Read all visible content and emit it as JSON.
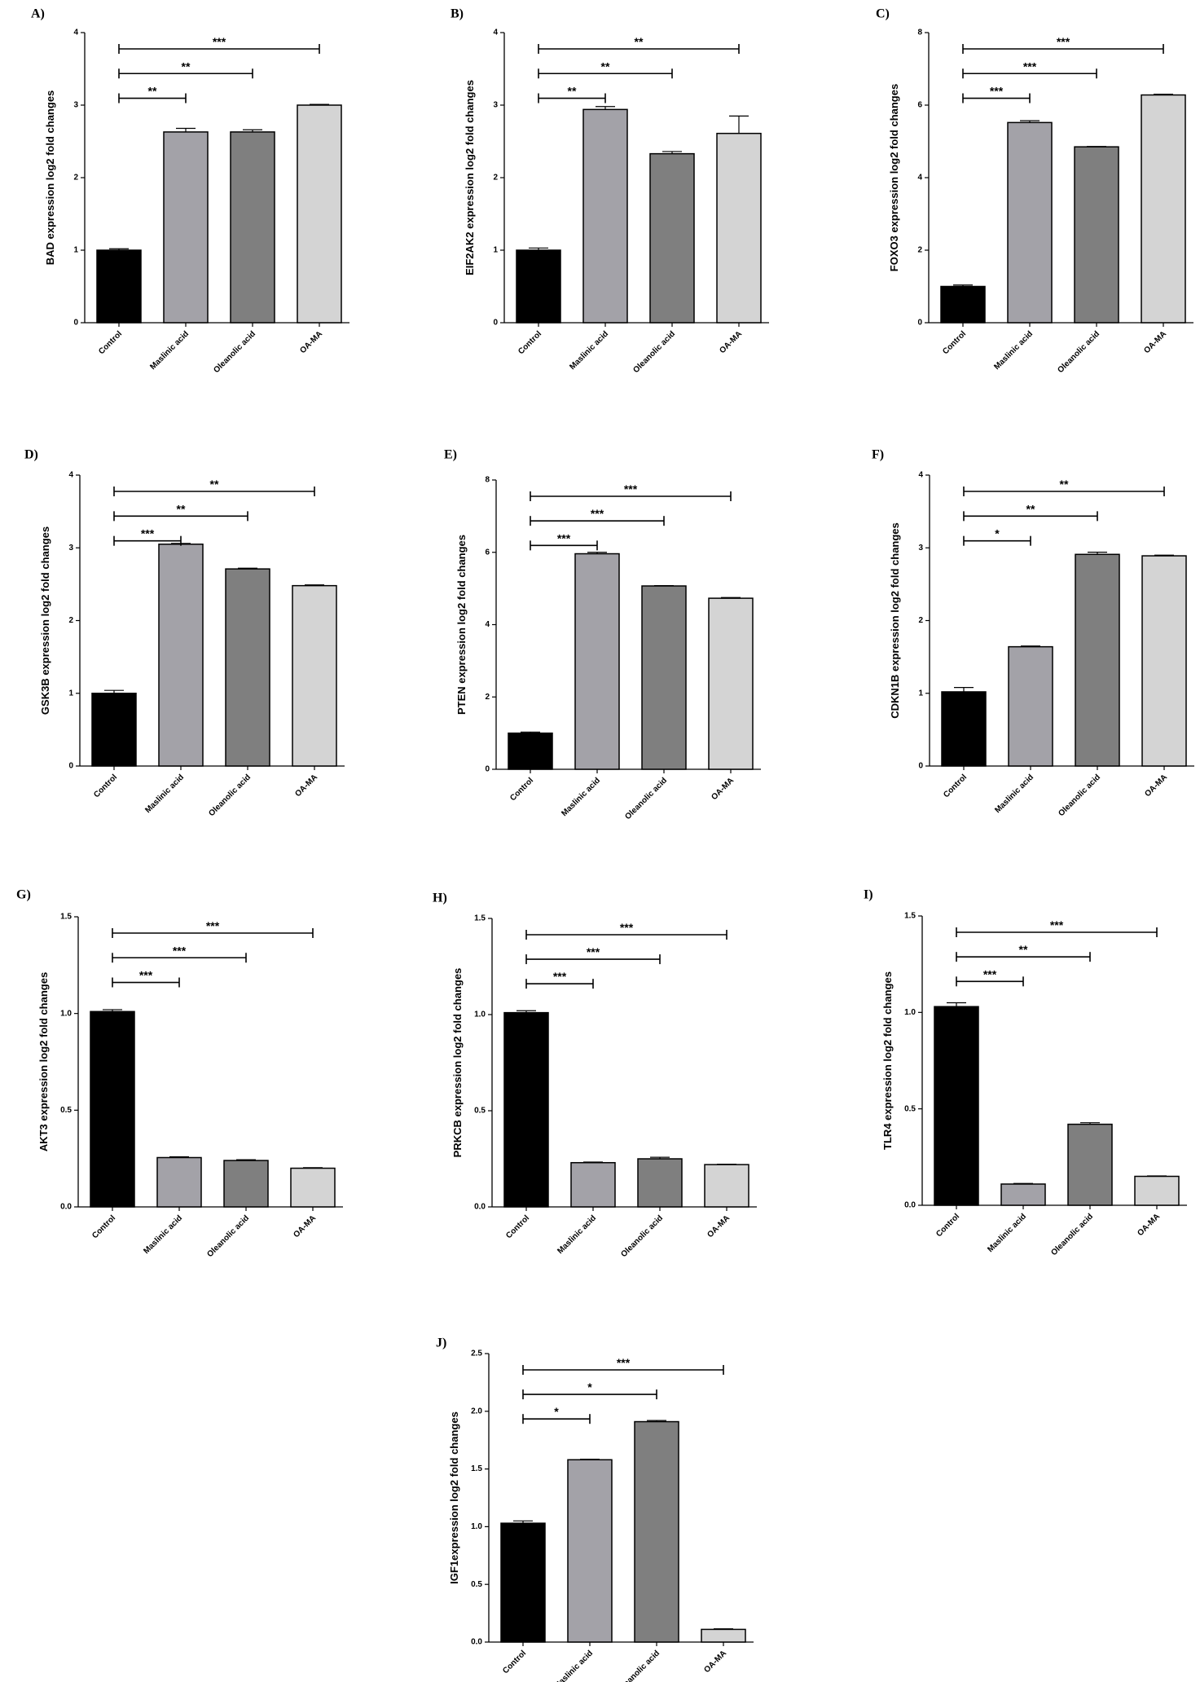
{
  "figure": {
    "categories": [
      "Control",
      "Maslinic acid",
      "Oleanolic acid",
      "OA-MA"
    ],
    "bar_colors": [
      "#000000",
      "#a3a2a8",
      "#7f7f7f",
      "#d4d4d4"
    ]
  },
  "chart_data": [
    {
      "type": "bar",
      "panel": "A)",
      "ylabel": "BAD expression log2 fold changes",
      "categories": [
        "Control",
        "Maslinic acid",
        "Oleanolic acid",
        "OA-MA"
      ],
      "values": [
        1.0,
        2.63,
        2.63,
        3.0
      ],
      "errors": [
        0.02,
        0.05,
        0.03,
        0.01
      ],
      "ylim": [
        0,
        4
      ],
      "yticks": [
        "0",
        "1",
        "2",
        "3",
        "4"
      ],
      "significance": [
        {
          "to": 1,
          "label": "**"
        },
        {
          "to": 2,
          "label": "**"
        },
        {
          "to": 3,
          "label": "***"
        }
      ]
    },
    {
      "type": "bar",
      "panel": "B)",
      "ylabel": "EIF2AK2 expression log2 fold changes",
      "categories": [
        "Control",
        "Maslinic acid",
        "Oleanolic acid",
        "OA-MA"
      ],
      "values": [
        1.0,
        2.94,
        2.33,
        2.61
      ],
      "errors": [
        0.03,
        0.04,
        0.03,
        0.24
      ],
      "ylim": [
        0,
        4
      ],
      "yticks": [
        "0",
        "1",
        "2",
        "3",
        "4"
      ],
      "significance": [
        {
          "to": 1,
          "label": "**"
        },
        {
          "to": 2,
          "label": "**"
        },
        {
          "to": 3,
          "label": "**"
        }
      ]
    },
    {
      "type": "bar",
      "panel": "C)",
      "ylabel": "FOXO3 expression log2 fold changes",
      "categories": [
        "Control",
        "Maslinic acid",
        "Oleanolic acid",
        "OA-MA"
      ],
      "values": [
        1.0,
        5.52,
        4.85,
        6.28
      ],
      "errors": [
        0.04,
        0.05,
        0.01,
        0.02
      ],
      "ylim": [
        0,
        8
      ],
      "yticks": [
        "0",
        "2",
        "4",
        "6",
        "8"
      ],
      "significance": [
        {
          "to": 1,
          "label": "***"
        },
        {
          "to": 2,
          "label": "***"
        },
        {
          "to": 3,
          "label": "***"
        }
      ]
    },
    {
      "type": "bar",
      "panel": "D)",
      "ylabel": "GSK3B expression log2 fold changes",
      "categories": [
        "Control",
        "Maslinic acid",
        "Oleanolic acid",
        "OA-MA"
      ],
      "values": [
        1.0,
        3.05,
        2.71,
        2.48
      ],
      "errors": [
        0.04,
        0.01,
        0.01,
        0.01
      ],
      "ylim": [
        0,
        4
      ],
      "yticks": [
        "0",
        "1",
        "2",
        "3",
        "4"
      ],
      "significance": [
        {
          "to": 1,
          "label": "***"
        },
        {
          "to": 2,
          "label": "**"
        },
        {
          "to": 3,
          "label": "**"
        }
      ]
    },
    {
      "type": "bar",
      "panel": "E)",
      "ylabel": "PTEN expression log2 fold changes",
      "categories": [
        "Control",
        "Maslinic acid",
        "Oleanolic acid",
        "OA-MA"
      ],
      "values": [
        1.0,
        5.96,
        5.07,
        4.73
      ],
      "errors": [
        0.03,
        0.04,
        0.01,
        0.02
      ],
      "ylim": [
        0,
        8
      ],
      "yticks": [
        "0",
        "2",
        "4",
        "6",
        "8"
      ],
      "significance": [
        {
          "to": 1,
          "label": "***"
        },
        {
          "to": 2,
          "label": "***"
        },
        {
          "to": 3,
          "label": "***"
        }
      ]
    },
    {
      "type": "bar",
      "panel": "F)",
      "ylabel": "CDKN1B expression log2 fold changes",
      "categories": [
        "Control",
        "Maslinic acid",
        "Oleanolic acid",
        "OA-MA"
      ],
      "values": [
        1.02,
        1.64,
        2.91,
        2.89
      ],
      "errors": [
        0.06,
        0.01,
        0.03,
        0.01
      ],
      "ylim": [
        0,
        4
      ],
      "yticks": [
        "0",
        "1",
        "2",
        "3",
        "4"
      ],
      "significance": [
        {
          "to": 1,
          "label": "*"
        },
        {
          "to": 2,
          "label": "**"
        },
        {
          "to": 3,
          "label": "**"
        }
      ]
    },
    {
      "type": "bar",
      "panel": "G)",
      "ylabel": "AKT3 expression log2 fold changes",
      "categories": [
        "Control",
        "Maslinic acid",
        "Oleanolic acid",
        "OA-MA"
      ],
      "values": [
        1.01,
        0.255,
        0.24,
        0.2
      ],
      "errors": [
        0.01,
        0.004,
        0.004,
        0.003
      ],
      "ylim": [
        0,
        1.5
      ],
      "yticks": [
        "0.0",
        "0.5",
        "1.0",
        "1.5"
      ],
      "significance": [
        {
          "to": 1,
          "label": "***"
        },
        {
          "to": 2,
          "label": "***"
        },
        {
          "to": 3,
          "label": "***"
        }
      ]
    },
    {
      "type": "bar",
      "panel": "H)",
      "ylabel": "PRKCB expression log2 fold changes",
      "categories": [
        "Control",
        "Maslinic acid",
        "Oleanolic acid",
        "OA-MA"
      ],
      "values": [
        1.01,
        0.23,
        0.25,
        0.22
      ],
      "errors": [
        0.01,
        0.003,
        0.008,
        0.002
      ],
      "ylim": [
        0,
        1.5
      ],
      "yticks": [
        "0.0",
        "0.5",
        "1.0",
        "1.5"
      ],
      "significance": [
        {
          "to": 1,
          "label": "***"
        },
        {
          "to": 2,
          "label": "***"
        },
        {
          "to": 3,
          "label": "***"
        }
      ]
    },
    {
      "type": "bar",
      "panel": "I)",
      "ylabel": "TLR4 expression log2 fold changes",
      "categories": [
        "Control",
        "Maslinic acid",
        "Oleanolic acid",
        "OA-MA"
      ],
      "values": [
        1.03,
        0.11,
        0.42,
        0.15
      ],
      "errors": [
        0.02,
        0.003,
        0.008,
        0.002
      ],
      "ylim": [
        0,
        1.5
      ],
      "yticks": [
        "0.0",
        "0.5",
        "1.0",
        "1.5"
      ],
      "significance": [
        {
          "to": 1,
          "label": "***"
        },
        {
          "to": 2,
          "label": "**"
        },
        {
          "to": 3,
          "label": "***"
        }
      ]
    },
    {
      "type": "bar",
      "panel": "J)",
      "ylabel": "IGF1expression log2 fold changes",
      "categories": [
        "Control",
        "Maslinic acid",
        "Oleanolic acid",
        "OA-MA"
      ],
      "values": [
        1.03,
        1.58,
        1.91,
        0.11
      ],
      "errors": [
        0.02,
        0.005,
        0.01,
        0.005
      ],
      "ylim": [
        0,
        2.5
      ],
      "yticks": [
        "0.0",
        "0.5",
        "1.0",
        "1.5",
        "2.0",
        "2.5"
      ],
      "significance": [
        {
          "to": 1,
          "label": "*"
        },
        {
          "to": 2,
          "label": "*"
        },
        {
          "to": 3,
          "label": "***"
        }
      ]
    }
  ]
}
